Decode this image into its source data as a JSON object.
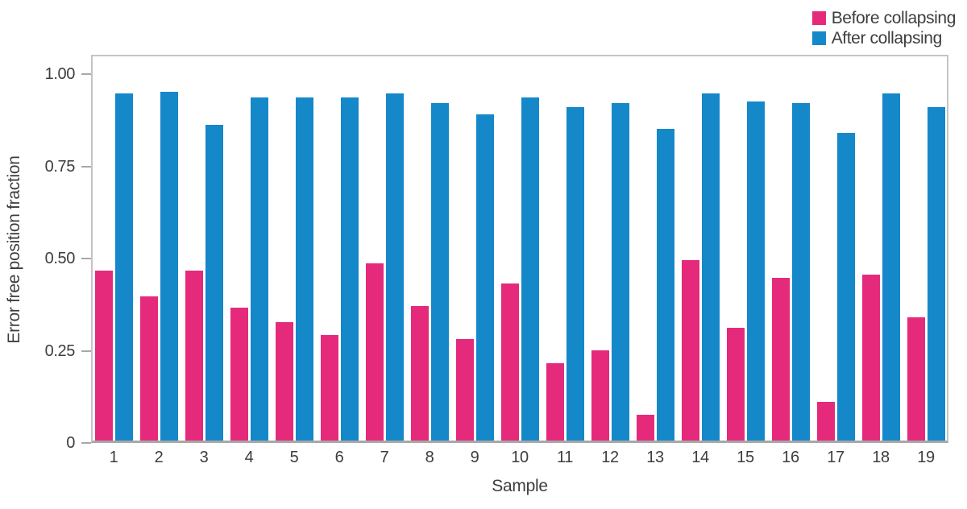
{
  "chart_data": {
    "type": "bar",
    "title": "",
    "xlabel": "Sample",
    "ylabel": "Error free position fraction",
    "categories": [
      "1",
      "2",
      "3",
      "4",
      "5",
      "6",
      "7",
      "8",
      "9",
      "10",
      "11",
      "12",
      "13",
      "14",
      "15",
      "16",
      "17",
      "18",
      "19"
    ],
    "series": [
      {
        "name": "Before collapsing",
        "color": "#e52a7c",
        "values": [
          0.46,
          0.39,
          0.46,
          0.36,
          0.32,
          0.285,
          0.48,
          0.365,
          0.275,
          0.425,
          0.21,
          0.245,
          0.07,
          0.49,
          0.305,
          0.44,
          0.105,
          0.45,
          0.335
        ]
      },
      {
        "name": "After collapsing",
        "color": "#1588c9",
        "values": [
          0.94,
          0.945,
          0.855,
          0.93,
          0.93,
          0.93,
          0.94,
          0.915,
          0.885,
          0.93,
          0.905,
          0.915,
          0.845,
          0.94,
          0.92,
          0.915,
          0.835,
          0.94,
          0.905
        ]
      }
    ],
    "ylim": [
      0,
      1.05
    ],
    "yticks": [
      0,
      0.25,
      0.5,
      0.75,
      1.0
    ],
    "ytick_labels": [
      "0",
      "0.25",
      "0.50",
      "0.75",
      "1.00"
    ],
    "grid": false,
    "legend_position": "top-right",
    "colors": {
      "text": "#3d3d3d",
      "axis_border": "#c4c4c4",
      "axis_line": "#a8a8a8",
      "background": "#ffffff"
    }
  }
}
